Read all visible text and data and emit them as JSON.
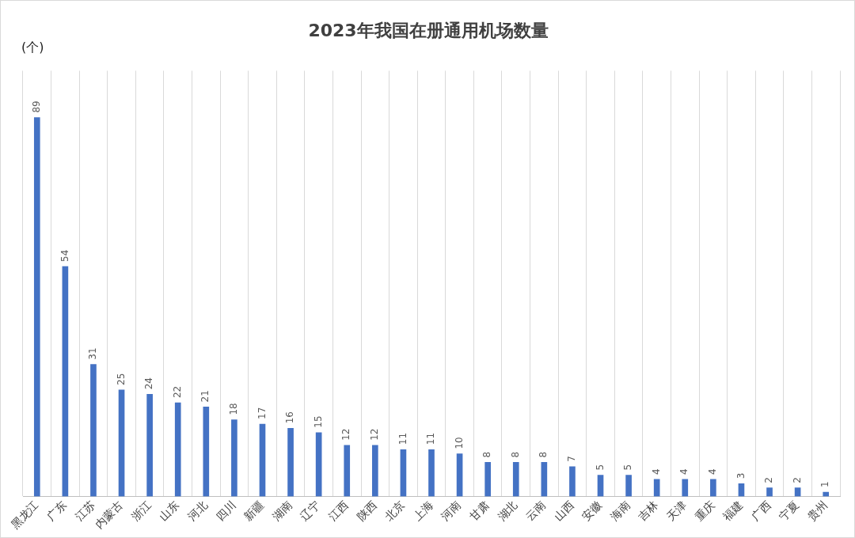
{
  "chart_data": {
    "type": "bar",
    "title": "2023年我国在册通用机场数量",
    "ylabel": "(个)",
    "categories": [
      "黑龙江",
      "广东",
      "江苏",
      "内蒙古",
      "浙江",
      "山东",
      "河北",
      "四川",
      "新疆",
      "湖南",
      "辽宁",
      "江西",
      "陕西",
      "北京",
      "上海",
      "河南",
      "甘肃",
      "湖北",
      "云南",
      "山西",
      "安徽",
      "海南",
      "吉林",
      "天津",
      "重庆",
      "福建",
      "广西",
      "宁夏",
      "贵州"
    ],
    "values": [
      89,
      54,
      31,
      25,
      24,
      22,
      21,
      18,
      17,
      16,
      15,
      12,
      12,
      11,
      11,
      10,
      8,
      8,
      8,
      7,
      5,
      5,
      4,
      4,
      4,
      3,
      2,
      2,
      1
    ],
    "color": "#4472c4",
    "ylim": [
      0,
      100
    ],
    "grid": "x",
    "data_labels": true,
    "legend": false
  }
}
